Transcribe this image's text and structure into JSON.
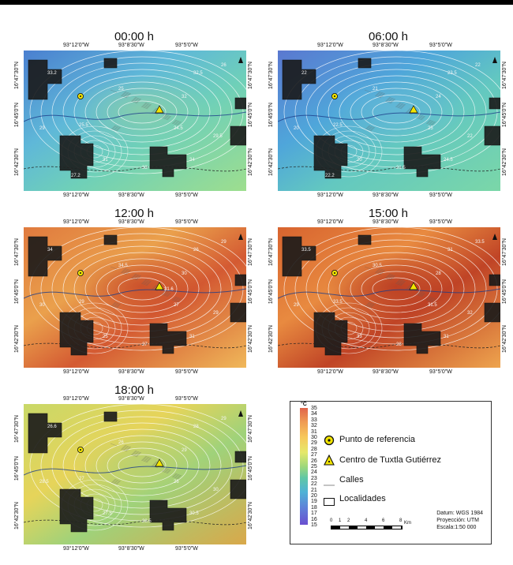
{
  "panels": [
    {
      "time": "00:00 h",
      "theme": "cool",
      "center_label": "",
      "labels": [
        "33.2",
        "32.5",
        "29",
        "25.5",
        "25",
        "32",
        "29.5",
        "33",
        "31",
        "34",
        "26",
        "24.5",
        "27.2"
      ]
    },
    {
      "time": "06:00 h",
      "theme": "cool2",
      "center_label": "",
      "labels": [
        "22",
        "23.5",
        "20",
        "22.5",
        "21",
        "24",
        "22",
        "21.5",
        "20",
        "24.5",
        "22",
        "25",
        "22.2"
      ]
    },
    {
      "time": "12:00 h",
      "theme": "hot",
      "center_label": "31.6",
      "labels": [
        "34",
        "26",
        "30",
        "29",
        "34.5",
        "30",
        "29",
        "27",
        "25",
        "31",
        "29",
        "27"
      ]
    },
    {
      "time": "15:00 h",
      "theme": "hot2",
      "center_label": "",
      "labels": [
        "33.5",
        "31",
        "29",
        "33.5",
        "30.5",
        "28",
        "32",
        "28",
        "33",
        "31",
        "33.5",
        "31.5"
      ]
    },
    {
      "time": "18:00 h",
      "theme": "warm",
      "center_label": "",
      "labels": [
        "26.6",
        "28",
        "28.5",
        "27",
        "26",
        "29",
        "30",
        "28.5",
        "27.5",
        "30.5",
        "29",
        "26"
      ]
    }
  ],
  "coords": {
    "top": [
      "93°12'0\"W",
      "93°8'30\"W",
      "93°5'0\"W"
    ],
    "bottom": [
      "93°12'0\"W",
      "93°8'30\"W",
      "93°5'0\"W"
    ],
    "left": [
      "16°47'30\"N",
      "16°45'0\"N",
      "16°42'30\"N"
    ],
    "right": [
      "16°47'30\"N",
      "16°45'0\"N",
      "16°42'30\"N"
    ]
  },
  "legend": {
    "unit": "°C",
    "ticks": [
      "35",
      "34",
      "33",
      "32",
      "31",
      "30",
      "29",
      "28",
      "27",
      "26",
      "25",
      "24",
      "23",
      "22",
      "21",
      "20",
      "19",
      "18",
      "17",
      "16",
      "15"
    ],
    "items": [
      {
        "icon": "reference-point-icon",
        "label": "Punto de referencia"
      },
      {
        "icon": "center-triangle-icon",
        "label": "Centro de Tuxtla Gutiérrez"
      },
      {
        "icon": "streets-line-icon",
        "label": "Calles"
      },
      {
        "icon": "localities-box-icon",
        "label": "Localidades"
      }
    ],
    "scale_ticks": [
      "0",
      "1",
      "2",
      "4",
      "6",
      "8"
    ],
    "scale_unit": "Km",
    "datum": "Datum: WGS 1984",
    "projection": "Proyección: UTM",
    "scale_text": "Escala:1:50 000"
  }
}
